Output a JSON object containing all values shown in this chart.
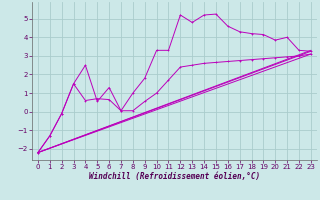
{
  "background_color": "#cce8e8",
  "grid_color": "#aacccc",
  "line_color": "#bb00bb",
  "xlim": [
    -0.5,
    23.5
  ],
  "ylim": [
    -2.6,
    5.9
  ],
  "xlabel": "Windchill (Refroidissement éolien,°C)",
  "xlabel_fontsize": 5.5,
  "tick_fontsize": 5.0,
  "yticks": [
    -2,
    -1,
    0,
    1,
    2,
    3,
    4,
    5
  ],
  "xticks": [
    0,
    1,
    2,
    3,
    4,
    5,
    6,
    7,
    8,
    9,
    10,
    11,
    12,
    13,
    14,
    15,
    16,
    17,
    18,
    19,
    20,
    21,
    22,
    23
  ],
  "series1_x": [
    0,
    1,
    2,
    3,
    4,
    5,
    6,
    7,
    8,
    9,
    10,
    11,
    12,
    13,
    14,
    15,
    16,
    17,
    18,
    19,
    20,
    21,
    22,
    23
  ],
  "series1_y": [
    -2.2,
    -1.3,
    -0.1,
    1.5,
    2.5,
    0.55,
    1.3,
    0.05,
    1.0,
    1.8,
    3.3,
    3.3,
    5.2,
    4.8,
    5.2,
    5.25,
    4.6,
    4.3,
    4.2,
    4.15,
    3.85,
    4.0,
    3.3,
    3.25
  ],
  "series2_x": [
    0,
    1,
    2,
    3,
    4,
    5,
    6,
    7,
    8,
    9,
    10,
    11,
    12,
    13,
    14,
    15,
    16,
    17,
    18,
    19,
    20,
    21,
    22,
    23
  ],
  "series2_y": [
    -2.2,
    -1.3,
    -0.1,
    1.5,
    0.6,
    0.7,
    0.65,
    0.05,
    0.05,
    0.55,
    1.0,
    1.7,
    2.4,
    2.5,
    2.6,
    2.65,
    2.7,
    2.75,
    2.8,
    2.85,
    2.9,
    2.95,
    3.0,
    3.1
  ],
  "line1_x": [
    0,
    23
  ],
  "line1_y": [
    -2.2,
    3.3
  ],
  "line2_x": [
    0,
    23
  ],
  "line2_y": [
    -2.2,
    3.1
  ],
  "line3_x": [
    0,
    23
  ],
  "line3_y": [
    -2.2,
    3.25
  ]
}
